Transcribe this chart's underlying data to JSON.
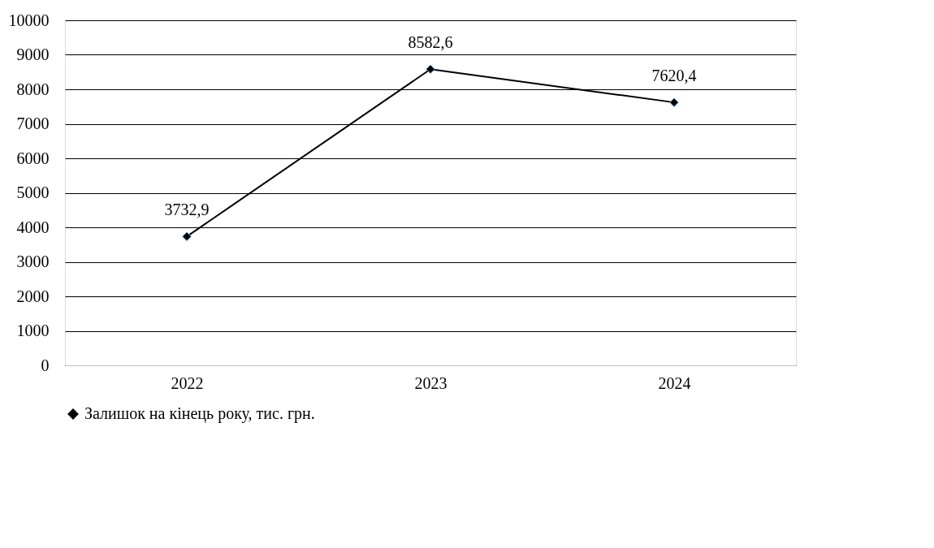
{
  "chart_data": {
    "type": "line",
    "categories": [
      "2022",
      "2023",
      "2024"
    ],
    "series": [
      {
        "name": "Залишок на кінець року, тис. грн.",
        "color": "#000000",
        "values": [
          3732.9,
          8582.6,
          7620.4
        ],
        "value_labels": [
          "3732,9",
          "8582,6",
          "7620,4"
        ]
      }
    ],
    "ylim": [
      0,
      10000
    ],
    "yticks": [
      0,
      1000,
      2000,
      3000,
      4000,
      5000,
      6000,
      7000,
      8000,
      9000,
      10000
    ],
    "grid": "y",
    "legend": "bottom",
    "marker": "diamond",
    "line_style": "solid"
  }
}
